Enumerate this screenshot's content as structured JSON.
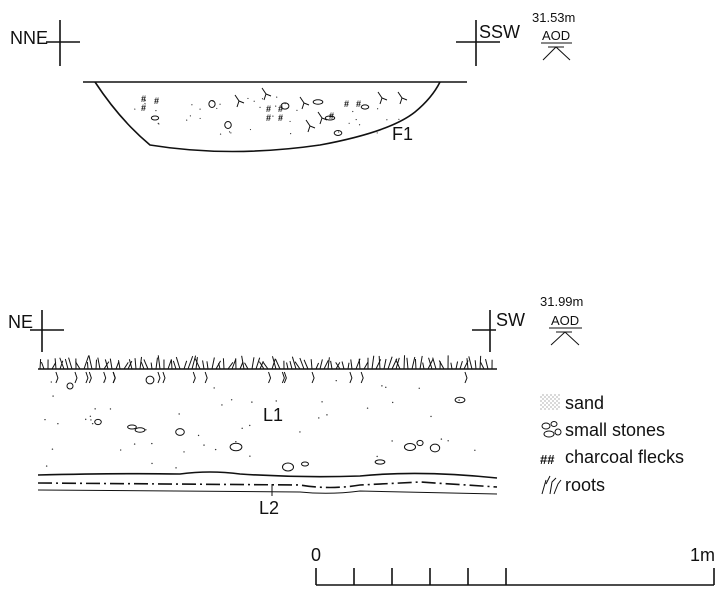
{
  "sections": [
    {
      "left_label": "NNE",
      "right_label": "SSW",
      "elevation": "31.53m",
      "datum": "AOD",
      "feature": "F1"
    },
    {
      "left_label": "NE",
      "right_label": "SW",
      "elevation": "31.99m",
      "datum": "AOD",
      "layers": [
        "L1",
        "L2"
      ]
    }
  ],
  "legend": [
    "sand",
    "small stones",
    "charcoal flecks",
    "roots"
  ],
  "scale": {
    "start": "0",
    "end": "1m"
  }
}
